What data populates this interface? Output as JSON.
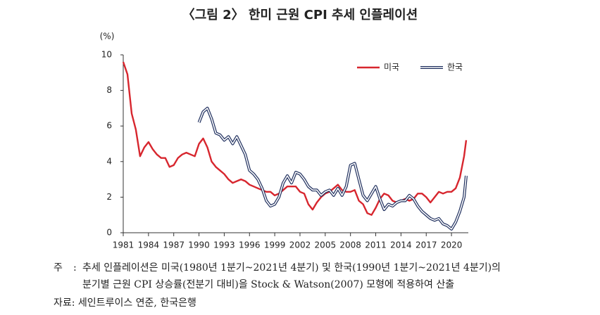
{
  "chart_data": {
    "type": "line",
    "title": "〈그림 2〉 한미 근원 CPI 추세 인플레이션",
    "y_unit": "(%)",
    "x": [
      1981,
      1981.5,
      1982,
      1982.5,
      1983,
      1983.5,
      1984,
      1984.5,
      1985,
      1985.5,
      1986,
      1986.5,
      1987,
      1987.5,
      1988,
      1988.5,
      1989,
      1989.5,
      1990,
      1990.5,
      1991,
      1991.5,
      1992,
      1992.5,
      1993,
      1993.5,
      1994,
      1994.5,
      1995,
      1995.5,
      1996,
      1996.5,
      1997,
      1997.5,
      1998,
      1998.5,
      1999,
      1999.5,
      2000,
      2000.5,
      2001,
      2001.5,
      2002,
      2002.5,
      2003,
      2003.5,
      2004,
      2004.5,
      2005,
      2005.5,
      2006,
      2006.5,
      2007,
      2007.5,
      2008,
      2008.5,
      2009,
      2009.5,
      2010,
      2010.5,
      2011,
      2011.5,
      2012,
      2012.5,
      2013,
      2013.5,
      2014,
      2014.5,
      2015,
      2015.5,
      2016,
      2016.5,
      2017,
      2017.5,
      2018,
      2018.5,
      2019,
      2019.5,
      2020,
      2020.5,
      2021,
      2021.5,
      2021.75
    ],
    "series": [
      {
        "name": "미국",
        "color": "#d7262e",
        "style": "single",
        "values": [
          9.6,
          8.9,
          6.7,
          5.8,
          4.3,
          4.8,
          5.1,
          4.7,
          4.4,
          4.2,
          4.2,
          3.7,
          3.8,
          4.2,
          4.4,
          4.5,
          4.4,
          4.3,
          5.0,
          5.3,
          4.8,
          4.0,
          3.7,
          3.5,
          3.3,
          3.0,
          2.8,
          2.9,
          3.0,
          2.9,
          2.7,
          2.6,
          2.5,
          2.4,
          2.3,
          2.3,
          2.1,
          2.2,
          2.4,
          2.6,
          2.6,
          2.6,
          2.3,
          2.2,
          1.6,
          1.3,
          1.7,
          2.0,
          2.2,
          2.3,
          2.5,
          2.7,
          2.4,
          2.3,
          2.3,
          2.4,
          1.8,
          1.6,
          1.1,
          1.0,
          1.4,
          1.9,
          2.2,
          2.1,
          1.8,
          1.7,
          1.8,
          1.9,
          1.8,
          1.9,
          2.2,
          2.2,
          2.0,
          1.7,
          2.0,
          2.3,
          2.2,
          2.3,
          2.3,
          2.5,
          3.1,
          4.3,
          5.2
        ]
      },
      {
        "name": "한국",
        "color": "#1f2f5e",
        "style": "double",
        "values": [
          null,
          null,
          null,
          null,
          null,
          null,
          null,
          null,
          null,
          null,
          null,
          null,
          null,
          null,
          null,
          null,
          null,
          null,
          6.2,
          6.8,
          7.0,
          6.4,
          5.6,
          5.5,
          5.2,
          5.4,
          5.0,
          5.4,
          4.9,
          4.4,
          3.5,
          3.3,
          3.0,
          2.5,
          1.8,
          1.5,
          1.6,
          2.0,
          2.8,
          3.2,
          2.8,
          3.4,
          3.3,
          3.0,
          2.6,
          2.4,
          2.4,
          2.1,
          2.3,
          2.4,
          2.1,
          2.5,
          2.1,
          2.6,
          3.8,
          3.9,
          3.0,
          2.1,
          1.8,
          2.2,
          2.6,
          1.9,
          1.3,
          1.6,
          1.5,
          1.7,
          1.8,
          1.8,
          2.1,
          1.9,
          1.5,
          1.2,
          1.0,
          0.8,
          0.7,
          0.8,
          0.5,
          0.4,
          0.2,
          0.6,
          1.2,
          2.0,
          3.2
        ]
      }
    ],
    "xlim": [
      1981,
      2022
    ],
    "xticks": [
      1981,
      1984,
      1987,
      1990,
      1993,
      1996,
      1999,
      2002,
      2005,
      2008,
      2011,
      2014,
      2017,
      2020
    ],
    "ylim": [
      0,
      10
    ],
    "yticks": [
      0,
      2,
      4,
      6,
      8,
      10
    ],
    "legend": "top-right",
    "note_label": "주",
    "note_sep": ":",
    "note_lines": [
      "추세 인플레이션은 미국(1980년 1분기~2021년 4분기) 및 한국(1990년 1분기~2021년 4분기)의",
      "분기별 근원 CPI 상승률(전분기 대비)을 Stock & Watson(2007) 모형에 적용하여 산출"
    ],
    "source": "자료: 세인트루이스 연준, 한국은행"
  }
}
